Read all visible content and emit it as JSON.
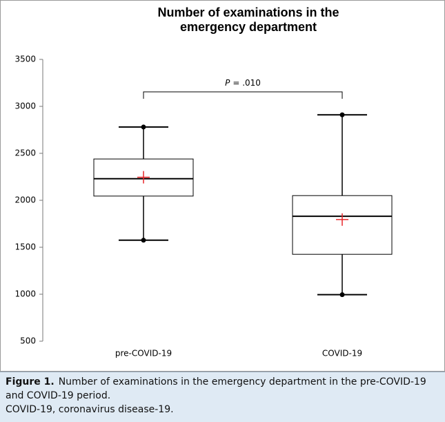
{
  "chart_data": {
    "type": "box",
    "title": "Number of examinations in the emergency department",
    "categories": [
      "pre-COVID-19",
      "COVID-19"
    ],
    "boxes": [
      {
        "min": 1575,
        "q1": 2045,
        "median": 2230,
        "q3": 2440,
        "max": 2780,
        "mean": 2245
      },
      {
        "min": 995,
        "q1": 1425,
        "median": 1830,
        "q3": 2050,
        "max": 2910,
        "mean": 1795
      }
    ],
    "color": "#000000",
    "mean_color": "#e8272a",
    "ylim": [
      500,
      3500
    ],
    "yticks": [
      500,
      1000,
      1500,
      2000,
      2500,
      3000,
      3500
    ],
    "annotation": {
      "symbol": "P",
      "text": "= .010"
    }
  },
  "caption": {
    "label": "Figure 1.",
    "text": "Number of examinations in the emergency department in the pre-COVID-19 and COVID-19 period.",
    "note": "COVID-19, coronavirus disease-19."
  }
}
